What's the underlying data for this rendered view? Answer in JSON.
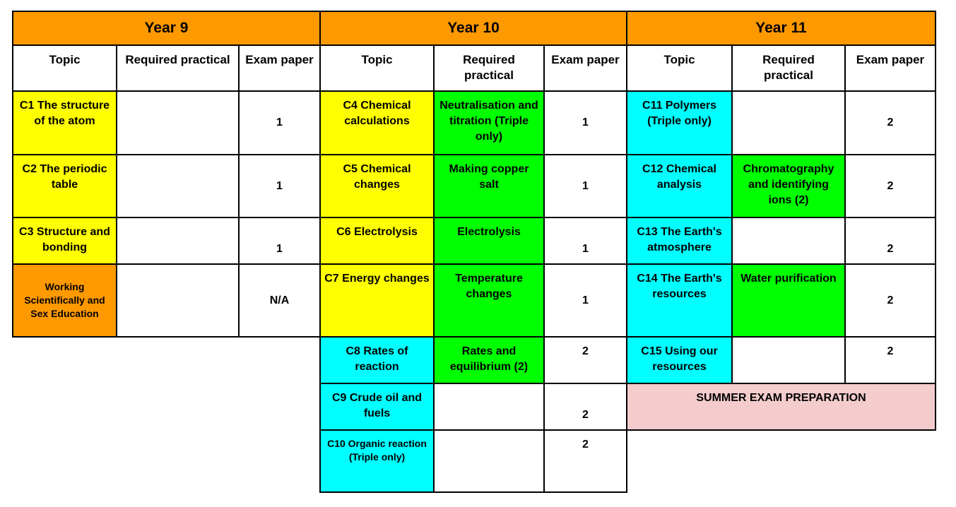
{
  "colors": {
    "orange": "#ff9900",
    "yellow": "#ffff00",
    "green": "#00ff00",
    "cyan": "#00ffff",
    "pink": "#f4cccc",
    "white": "#ffffff"
  },
  "years": [
    {
      "title": "Year 9",
      "headers": [
        "Topic",
        "Required practical",
        "Exam paper"
      ],
      "rows": [
        {
          "topic": "C1 The structure of the atom",
          "topic_color": "yellow",
          "practical": "",
          "practical_color": "white",
          "exam": "1"
        },
        {
          "topic": "C2 The periodic table",
          "topic_color": "yellow",
          "practical": "",
          "practical_color": "white",
          "exam": "1"
        },
        {
          "topic": "C3 Structure and bonding",
          "topic_color": "yellow",
          "practical": "",
          "practical_color": "white",
          "exam": "1"
        },
        {
          "topic": "Working Scientifically and Sex Education",
          "topic_color": "orange",
          "practical": "",
          "practical_color": "white",
          "exam": "N/A"
        }
      ]
    },
    {
      "title": "Year 10",
      "headers": [
        "Topic",
        "Required practical",
        "Exam paper"
      ],
      "rows": [
        {
          "topic": "C4 Chemical calculations",
          "topic_color": "yellow",
          "practical": "Neutralisation and titration (Triple only)",
          "practical_color": "green",
          "exam": "1"
        },
        {
          "topic": "C5 Chemical changes",
          "topic_color": "yellow",
          "practical": "Making copper salt",
          "practical_color": "green",
          "exam": "1"
        },
        {
          "topic": "C6 Electrolysis",
          "topic_color": "yellow",
          "practical": "Electrolysis",
          "practical_color": "green",
          "exam": "1"
        },
        {
          "topic": "C7 Energy changes",
          "topic_color": "yellow",
          "practical": "Temperature changes",
          "practical_color": "green",
          "exam": "1"
        },
        {
          "topic": "C8 Rates of reaction",
          "topic_color": "cyan",
          "practical": "Rates and equilibrium (2)",
          "practical_color": "green",
          "exam": "2"
        },
        {
          "topic": "C9 Crude oil and fuels",
          "topic_color": "cyan",
          "practical": "",
          "practical_color": "white",
          "exam": "2"
        },
        {
          "topic": "C10 Organic reaction (Triple only)",
          "topic_color": "cyan",
          "practical": "",
          "practical_color": "white",
          "exam": "2"
        }
      ]
    },
    {
      "title": "Year 11",
      "headers": [
        "Topic",
        "Required practical",
        "Exam paper"
      ],
      "rows": [
        {
          "topic": "C11 Polymers (Triple only)",
          "topic_color": "cyan",
          "practical": "",
          "practical_color": "white",
          "exam": "2"
        },
        {
          "topic": "C12 Chemical analysis",
          "topic_color": "cyan",
          "practical": "Chromatography and identifying ions (2)",
          "practical_color": "green",
          "exam": "2"
        },
        {
          "topic": "C13 The Earth's atmosphere",
          "topic_color": "cyan",
          "practical": "",
          "practical_color": "white",
          "exam": "2"
        },
        {
          "topic": "C14 The Earth's resources",
          "topic_color": "cyan",
          "practical": "Water purification",
          "practical_color": "green",
          "exam": "2"
        },
        {
          "topic": "C15 Using our resources",
          "topic_color": "cyan",
          "practical": "",
          "practical_color": "white",
          "exam": "2"
        }
      ],
      "footer": {
        "label": "SUMMER EXAM PREPARATION",
        "color": "pink"
      }
    }
  ]
}
